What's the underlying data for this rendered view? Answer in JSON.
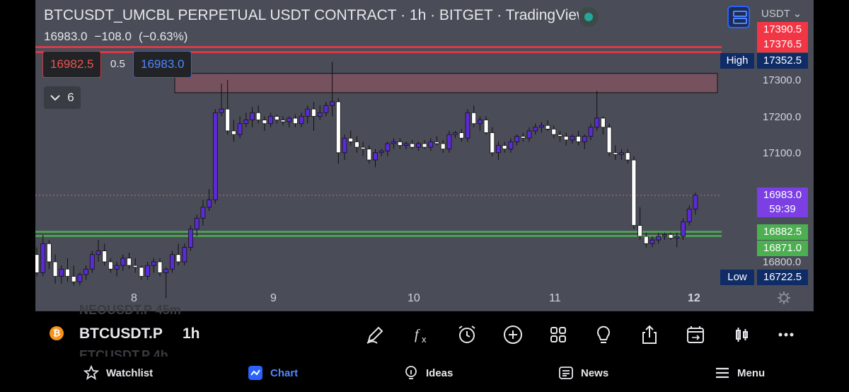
{
  "header": {
    "title": "BTCUSDT_UMCBL PERPETUAL USDT CONTRACT · 1h · BITGET · TradingView",
    "last_price": "16983.0",
    "change": "−108.0",
    "change_pct": "(−0.63%)",
    "currency": "USDT"
  },
  "trade": {
    "sell_price": "16982.5",
    "spread": "0.5",
    "buy_price": "16983.0"
  },
  "indicators_toggle": {
    "count": "6"
  },
  "price_axis": {
    "ticks": [
      "17300.0",
      "17200.0",
      "17100.0",
      "16800.0"
    ],
    "labels": {
      "red1": "17390.5",
      "red2": "17376.5",
      "high_tag": "High",
      "high": "17352.5",
      "current": "16983.0",
      "countdown": "59:39",
      "green1": "16882.5",
      "green2": "16871.0",
      "low_tag": "Low",
      "low": "16722.5"
    },
    "colors": {
      "red": "#f23645",
      "current": "#7b3fe4",
      "green": "#4caf50",
      "tag": "#0f2c66"
    }
  },
  "date_axis": [
    "8",
    "9",
    "10",
    "11",
    "12"
  ],
  "symbol_bar": {
    "symbol": "BTCUSDT.P",
    "interval": "1h",
    "ghost_above": "NEOUSDT.P   45m",
    "ghost_below": "ETCUSDT.P   4h",
    "tools": [
      "pencil-icon",
      "function-icon",
      "alarm-icon",
      "plus-circle-icon",
      "grid-icon",
      "lightbulb-icon",
      "share-icon",
      "calendar-replay-icon",
      "candles-icon",
      "more-icon"
    ]
  },
  "nav": [
    {
      "label": "Watchlist",
      "icon": "star-icon"
    },
    {
      "label": "Chart",
      "icon": "chart-icon"
    },
    {
      "label": "Ideas",
      "icon": "ideas-icon"
    },
    {
      "label": "News",
      "icon": "news-icon"
    },
    {
      "label": "Menu",
      "icon": "menu-icon"
    }
  ],
  "chart_data": {
    "type": "candlestick",
    "bull_color": "#5b2bd6",
    "bear_color": "#ffffff",
    "zone": {
      "low": 17265,
      "high": 17318
    },
    "candles": [
      [
        16820,
        16840,
        16760,
        16770
      ],
      [
        16770,
        16875,
        16760,
        16850
      ],
      [
        16850,
        16860,
        16780,
        16800
      ],
      [
        16800,
        16820,
        16740,
        16760
      ],
      [
        16760,
        16790,
        16740,
        16780
      ],
      [
        16780,
        16810,
        16745,
        16760
      ],
      [
        16760,
        16790,
        16735,
        16745
      ],
      [
        16745,
        16770,
        16735,
        16765
      ],
      [
        16765,
        16790,
        16750,
        16780
      ],
      [
        16780,
        16830,
        16770,
        16820
      ],
      [
        16820,
        16860,
        16800,
        16830
      ],
      [
        16830,
        16850,
        16790,
        16800
      ],
      [
        16800,
        16810,
        16770,
        16780
      ],
      [
        16780,
        16800,
        16760,
        16790
      ],
      [
        16790,
        16820,
        16775,
        16810
      ],
      [
        16810,
        16825,
        16780,
        16790
      ],
      [
        16790,
        16810,
        16770,
        16785
      ],
      [
        16785,
        16790,
        16750,
        16760
      ],
      [
        16760,
        16800,
        16750,
        16790
      ],
      [
        16790,
        16810,
        16770,
        16800
      ],
      [
        16800,
        16810,
        16760,
        16770
      ],
      [
        16770,
        16785,
        16700,
        16780
      ],
      [
        16780,
        16830,
        16770,
        16820
      ],
      [
        16820,
        16850,
        16790,
        16800
      ],
      [
        16800,
        16850,
        16790,
        16840
      ],
      [
        16840,
        16900,
        16830,
        16890
      ],
      [
        16890,
        16930,
        16870,
        16920
      ],
      [
        16920,
        16970,
        16900,
        16950
      ],
      [
        16950,
        17000,
        16940,
        16970
      ],
      [
        16970,
        17220,
        16960,
        17210
      ],
      [
        17210,
        17290,
        17200,
        17220
      ],
      [
        17220,
        17300,
        17150,
        17160
      ],
      [
        17160,
        17190,
        17130,
        17150
      ],
      [
        17150,
        17200,
        17140,
        17180
      ],
      [
        17180,
        17210,
        17170,
        17190
      ],
      [
        17190,
        17225,
        17170,
        17210
      ],
      [
        17210,
        17230,
        17180,
        17190
      ],
      [
        17190,
        17200,
        17160,
        17180
      ],
      [
        17180,
        17210,
        17170,
        17200
      ],
      [
        17200,
        17205,
        17180,
        17190
      ],
      [
        17190,
        17200,
        17175,
        17185
      ],
      [
        17185,
        17200,
        17170,
        17195
      ],
      [
        17195,
        17205,
        17170,
        17180
      ],
      [
        17180,
        17210,
        17170,
        17200
      ],
      [
        17200,
        17230,
        17180,
        17220
      ],
      [
        17220,
        17240,
        17160,
        17200
      ],
      [
        17200,
        17230,
        17190,
        17210
      ],
      [
        17210,
        17240,
        17200,
        17230
      ],
      [
        17230,
        17350,
        17200,
        17240
      ],
      [
        17240,
        17250,
        17070,
        17100
      ],
      [
        17100,
        17150,
        17080,
        17140
      ],
      [
        17140,
        17160,
        17120,
        17130
      ],
      [
        17130,
        17145,
        17100,
        17115
      ],
      [
        17115,
        17130,
        17090,
        17110
      ],
      [
        17110,
        17120,
        17070,
        17080
      ],
      [
        17080,
        17110,
        17060,
        17100
      ],
      [
        17100,
        17110,
        17090,
        17105
      ],
      [
        17105,
        17130,
        17090,
        17125
      ],
      [
        17125,
        17140,
        17110,
        17130
      ],
      [
        17130,
        17140,
        17110,
        17120
      ],
      [
        17120,
        17130,
        17110,
        17125
      ],
      [
        17125,
        17135,
        17110,
        17115
      ],
      [
        17115,
        17130,
        17105,
        17125
      ],
      [
        17125,
        17135,
        17110,
        17115
      ],
      [
        17115,
        17140,
        17105,
        17130
      ],
      [
        17130,
        17145,
        17120,
        17125
      ],
      [
        17125,
        17135,
        17100,
        17110
      ],
      [
        17110,
        17160,
        17100,
        17150
      ],
      [
        17150,
        17160,
        17140,
        17155
      ],
      [
        17155,
        17165,
        17130,
        17140
      ],
      [
        17140,
        17220,
        17130,
        17210
      ],
      [
        17210,
        17230,
        17170,
        17180
      ],
      [
        17180,
        17200,
        17160,
        17190
      ],
      [
        17190,
        17200,
        17150,
        17155
      ],
      [
        17155,
        17170,
        17090,
        17100
      ],
      [
        17100,
        17130,
        17080,
        17120
      ],
      [
        17120,
        17130,
        17100,
        17110
      ],
      [
        17110,
        17140,
        17100,
        17130
      ],
      [
        17130,
        17150,
        17120,
        17145
      ],
      [
        17145,
        17155,
        17130,
        17140
      ],
      [
        17140,
        17170,
        17130,
        17160
      ],
      [
        17160,
        17180,
        17150,
        17170
      ],
      [
        17170,
        17185,
        17155,
        17175
      ],
      [
        17175,
        17190,
        17160,
        17165
      ],
      [
        17165,
        17175,
        17140,
        17150
      ],
      [
        17150,
        17160,
        17130,
        17145
      ],
      [
        17145,
        17155,
        17120,
        17135
      ],
      [
        17135,
        17150,
        17125,
        17145
      ],
      [
        17145,
        17160,
        17120,
        17130
      ],
      [
        17130,
        17150,
        17110,
        17145
      ],
      [
        17145,
        17180,
        17135,
        17170
      ],
      [
        17170,
        17270,
        17160,
        17195
      ],
      [
        17195,
        17200,
        17150,
        17170
      ],
      [
        17170,
        17180,
        17090,
        17100
      ],
      [
        17100,
        17120,
        17080,
        17095
      ],
      [
        17095,
        17110,
        17080,
        17100
      ],
      [
        17100,
        17110,
        17070,
        17080
      ],
      [
        17080,
        17090,
        16890,
        16900
      ],
      [
        16900,
        16950,
        16860,
        16870
      ],
      [
        16870,
        16880,
        16840,
        16850
      ],
      [
        16850,
        16870,
        16840,
        16860
      ],
      [
        16860,
        16880,
        16850,
        16870
      ],
      [
        16870,
        16880,
        16860,
        16875
      ],
      [
        16875,
        16880,
        16860,
        16865
      ],
      [
        16865,
        16880,
        16840,
        16870
      ],
      [
        16870,
        16920,
        16860,
        16910
      ],
      [
        16910,
        16955,
        16900,
        16945
      ],
      [
        16945,
        16990,
        16930,
        16983
      ]
    ]
  }
}
